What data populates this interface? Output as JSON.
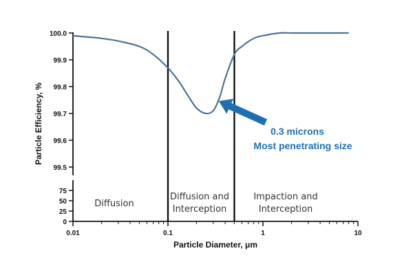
{
  "chart_data": {
    "type": "line",
    "xscale": "log",
    "xlim": [
      0.01,
      10
    ],
    "xticks": [
      {
        "value": 0.01,
        "label": "0.01"
      },
      {
        "value": 0.1,
        "label": "0.1"
      },
      {
        "value": 1,
        "label": "1"
      },
      {
        "value": 10,
        "label": "10"
      }
    ],
    "ylim_upper": [
      99.5,
      100.0
    ],
    "yticks_upper": [
      "100.0",
      "99.9",
      "99.8",
      "99.7",
      "99.6",
      "99.5"
    ],
    "yticks_lower": [
      "75",
      "50",
      "25",
      "0"
    ],
    "xlabel": "Particle Diameter, μm",
    "ylabel": "Particle Efficiency, %",
    "series": [
      {
        "x": [
          0.01,
          0.02,
          0.03,
          0.05,
          0.07,
          0.1,
          0.13,
          0.16,
          0.2,
          0.25,
          0.3,
          0.35,
          0.4,
          0.5,
          0.6,
          0.8,
          1.0,
          1.5,
          2.0,
          3.0,
          5.0,
          8.0
        ],
        "y": [
          99.99,
          99.98,
          99.97,
          99.95,
          99.92,
          99.87,
          99.82,
          99.77,
          99.72,
          99.7,
          99.71,
          99.76,
          99.83,
          99.92,
          99.95,
          99.98,
          99.99,
          100.0,
          100.0,
          100.0,
          100.0,
          100.0
        ]
      }
    ],
    "vlines": [
      0.1,
      0.5
    ],
    "regions": [
      {
        "label": "Diffusion"
      },
      {
        "label": "Diffusion and",
        "label2": "Interception"
      },
      {
        "label": "Impaction and",
        "label2": "Interception"
      }
    ],
    "annotation": {
      "line1": "0.3 microns",
      "line2": "Most penetrating size",
      "target_x": 0.3,
      "target_y": 99.71
    },
    "colors": {
      "curve": "#4f7196",
      "annotation": "#1f6fb2",
      "axes": "#111111",
      "vlines": "#111111"
    }
  }
}
